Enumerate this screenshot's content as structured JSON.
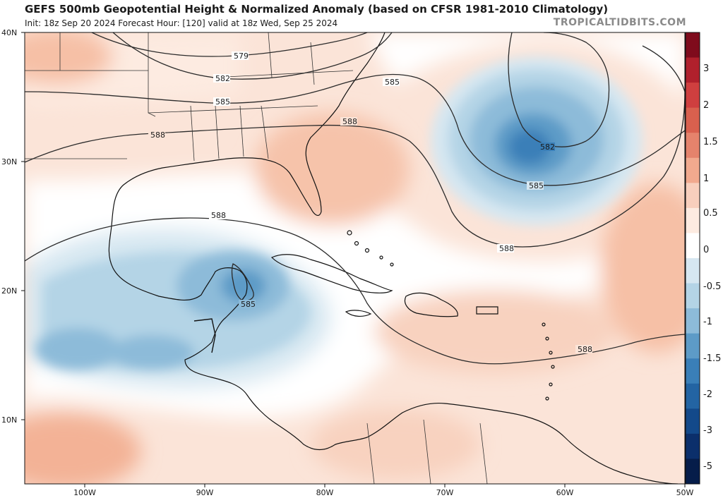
{
  "header": {
    "title": "GEFS 500mb Geopotential Height & Normalized Anomaly (based on CFSR 1981-2010 Climatology)",
    "subtitle": "Init: 18z Sep 20 2024   Forecast Hour: [120]   valid at 18z Wed, Sep 25 2024",
    "brand": "TROPICALTIDBITS.COM"
  },
  "axes": {
    "lat_labels": [
      "40N",
      "30N",
      "20N",
      "10N"
    ],
    "lon_labels": [
      "100W",
      "90W",
      "80W",
      "70W",
      "60W",
      "50W"
    ]
  },
  "contours": {
    "labels": [
      "579",
      "582",
      "585",
      "588",
      "588",
      "585",
      "588",
      "582",
      "585",
      "588",
      "585",
      "588"
    ]
  },
  "colorbar": {
    "labels": [
      "3",
      "2",
      "1.5",
      "1",
      "0.5",
      "0",
      "-0.5",
      "-1",
      "-1.5",
      "-2",
      "-3",
      "-5"
    ],
    "colors": [
      "#7f0b1c",
      "#b0202c",
      "#cf3f3f",
      "#d9604e",
      "#e5836c",
      "#f1a98e",
      "#f8cfbd",
      "#fdebe1",
      "#ffffff",
      "#d6e7f1",
      "#b4d4e6",
      "#8dbbd9",
      "#5d9bc7",
      "#3a7fb8",
      "#2364a3",
      "#13498a",
      "#0b2f6b",
      "#061d4a"
    ]
  }
}
